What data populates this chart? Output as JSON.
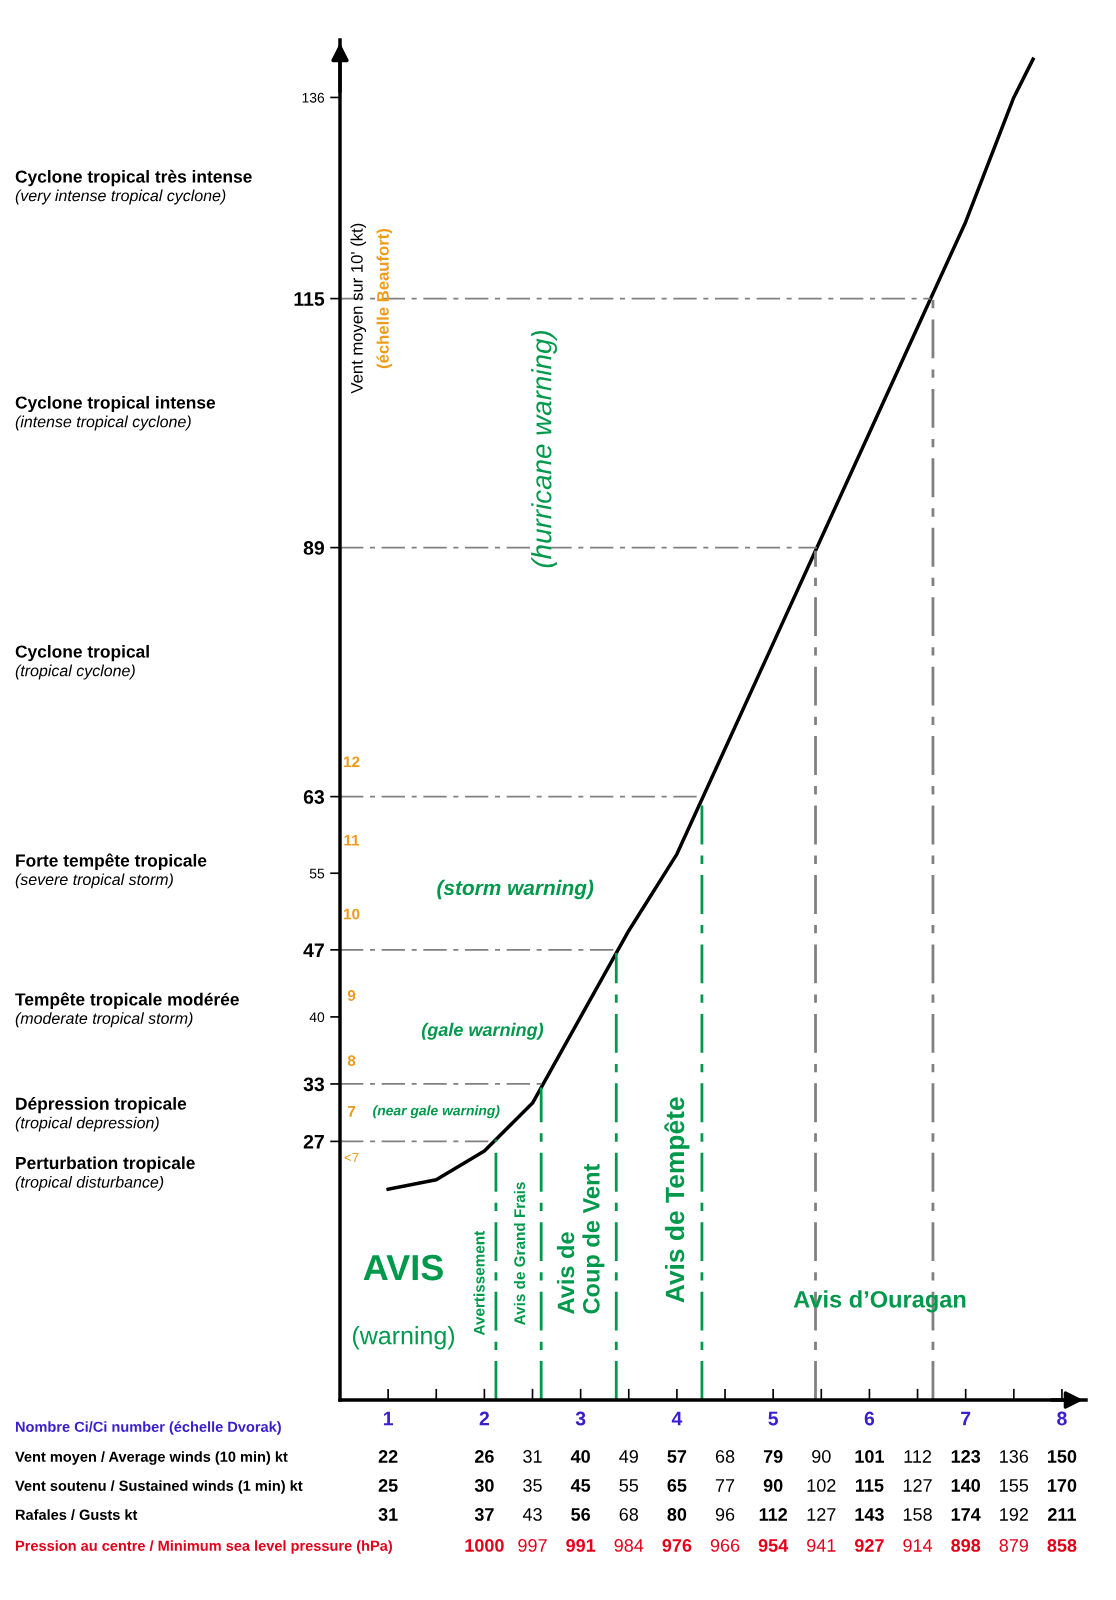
{
  "chart_data": {
    "type": "line",
    "xlabel": "Nombre Ci/Ci number (échelle Dvorak)",
    "ylabel": "Vent moyen sur 10' (kt)",
    "xlim": [
      0.5,
      8.25
    ],
    "xticks": [
      1,
      {
        "value": 1.5,
        "label": null
      },
      2,
      {
        "value": 2.5,
        "label": null
      },
      3,
      {
        "value": 3.5,
        "label": null
      },
      4,
      {
        "value": 4.5,
        "label": null
      },
      5,
      {
        "value": 5.5,
        "label": null
      },
      6,
      {
        "value": 6.5,
        "label": null
      },
      7,
      {
        "value": 7.5,
        "label": null
      },
      8
    ],
    "ylim": [
      0,
      142
    ],
    "yticks": [
      27,
      33,
      40,
      47,
      55,
      63,
      89,
      115,
      136
    ],
    "series": [
      {
        "color": "#000000",
        "x": [
          1,
          1.5,
          2,
          2.5,
          3,
          3.5,
          4,
          4.5,
          5,
          5.5,
          6,
          6.5,
          7,
          7.5,
          7.7
        ],
        "values": [
          22,
          23,
          26,
          31,
          40,
          49,
          57,
          68,
          79,
          90,
          101,
          112,
          123,
          136,
          140
        ]
      }
    ],
    "ref_lines": [
      {
        "axis": "y",
        "value": 27,
        "color": "#808080",
        "line_style": "dashed"
      },
      {
        "axis": "y",
        "value": 33,
        "color": "#808080",
        "line_style": "dashed"
      },
      {
        "axis": "y",
        "value": 47,
        "color": "#808080",
        "line_style": "dashed"
      },
      {
        "axis": "y",
        "value": 63,
        "color": "#808080",
        "line_style": "dashed"
      },
      {
        "axis": "y",
        "value": 89,
        "color": "#808080",
        "line_style": "dashed"
      },
      {
        "axis": "y",
        "value": 115,
        "color": "#808080",
        "line_style": "dashed"
      },
      {
        "axis": "x",
        "value": 2.12,
        "color": "#00994c",
        "line_style": "dashed"
      },
      {
        "axis": "x",
        "value": 2.59,
        "color": "#00994c",
        "line_style": "dashed"
      },
      {
        "axis": "x",
        "value": 3.37,
        "color": "#00994c",
        "line_style": "dashed"
      },
      {
        "axis": "x",
        "value": 4.26,
        "color": "#00994c",
        "line_style": "dashed"
      },
      {
        "axis": "x",
        "value": 5.44,
        "color": "#808080",
        "line_style": "dashed"
      },
      {
        "axis": "x",
        "value": 6.66,
        "color": "#808080",
        "line_style": "dashed"
      }
    ],
    "annotations": [
      "Cyclone tropical très intense\n(very intense tropical cyclone)",
      "Cyclone tropical intense\n(intense tropical cyclone)",
      "Cyclone tropical\n(tropical cyclone)",
      "Forte tempête tropicale\n(severe tropical storm)",
      "Tempête tropicale modérée\n(moderate tropical storm)",
      "Dépression tropicale\n(tropical depression)",
      "Perturbation tropicale\n(tropical disturbance)",
      "Avis d’Ouragan",
      "(hurricane warning)",
      "Avis de Tempête",
      "Avis de\nCoup de Vent",
      "Avis de Grand Frais",
      "Avertissement",
      "(storm warning)",
      "(gale warning)",
      "(near gale warning)",
      "AVIS",
      "(warning)",
      "12",
      "11",
      "10",
      "9",
      "8",
      "7",
      "<7",
      "(échelle Beaufort)",
      "Vent moyen / Average winds (10 min) kt",
      "22",
      "26",
      "31",
      "40",
      "49",
      "57",
      "68",
      "79",
      "90",
      "101",
      "112",
      "123",
      "136",
      "150",
      "Vent soutenu / Sustained winds (1 min) kt",
      "25",
      "30",
      "35",
      "45",
      "55",
      "65",
      "77",
      "90",
      "102",
      "115",
      "127",
      "140",
      "155",
      "170",
      "Rafales / Gusts kt",
      "31",
      "37",
      "43",
      "56",
      "68",
      "80",
      "96",
      "112",
      "127",
      "143",
      "158",
      "174",
      "192",
      "211",
      "Pression au centre / Minimum sea level pressure (hPa)",
      "1000",
      "997",
      "991",
      "984",
      "976",
      "966",
      "954",
      "941",
      "927",
      "914",
      "898",
      "879",
      "858"
    ]
  }
}
